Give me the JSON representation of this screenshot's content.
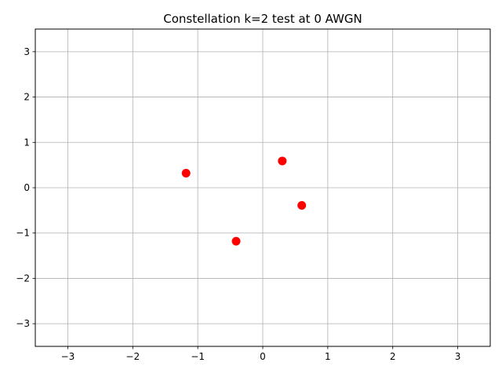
{
  "chart_data": {
    "type": "scatter",
    "title": "Constellation k=2 test at 0 AWGN",
    "xlabel": "",
    "ylabel": "",
    "xlim": [
      -3.5,
      3.5
    ],
    "ylim": [
      -3.5,
      3.5
    ],
    "grid": true,
    "marker_color": "#ff0000",
    "grid_color": "#b0b0b0",
    "x_ticks": [
      -3,
      -2,
      -1,
      0,
      1,
      2,
      3
    ],
    "y_ticks": [
      -3,
      -2,
      -1,
      0,
      1,
      2,
      3
    ],
    "x_tick_labels": [
      "−3",
      "−2",
      "−1",
      "0",
      "1",
      "2",
      "3"
    ],
    "y_tick_labels": [
      "−3",
      "−2",
      "−1",
      "0",
      "1",
      "2",
      "3"
    ],
    "series": [
      {
        "points": [
          {
            "x": -1.18,
            "y": 0.32
          },
          {
            "x": 0.3,
            "y": 0.59
          },
          {
            "x": 0.6,
            "y": -0.39
          },
          {
            "x": -0.41,
            "y": -1.18
          }
        ]
      }
    ]
  }
}
